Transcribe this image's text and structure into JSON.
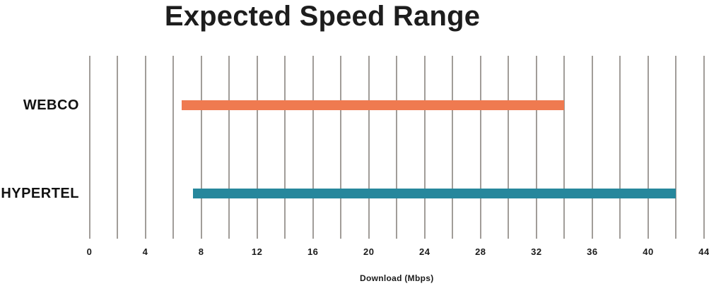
{
  "title": "Expected Speed Range",
  "colors": {
    "webco_bar": "#ef7a50",
    "hypertel_bar": "#26879c",
    "gridline": "#a19d99",
    "text": "#1b1b1b"
  },
  "chart_data": {
    "type": "bar",
    "subtype": "horizontal-range",
    "title": "Expected Speed Range",
    "xlabel": "Download (Mbps)",
    "ylabel": "",
    "categories": [
      "WEBCO",
      "HYPERTEL"
    ],
    "series": [
      {
        "name": "WEBCO",
        "range_start_mbps": 6.6,
        "range_end_mbps": 34,
        "color": "#ef7a50"
      },
      {
        "name": "HYPERTEL",
        "range_start_mbps": 7.4,
        "range_end_mbps": 42,
        "color": "#26879c"
      }
    ],
    "xlim": [
      0,
      44
    ],
    "xticks": [
      0,
      4,
      8,
      12,
      16,
      20,
      24,
      28,
      32,
      36,
      40,
      44
    ],
    "gridlines_every": 2,
    "grid": true,
    "legend": false
  }
}
